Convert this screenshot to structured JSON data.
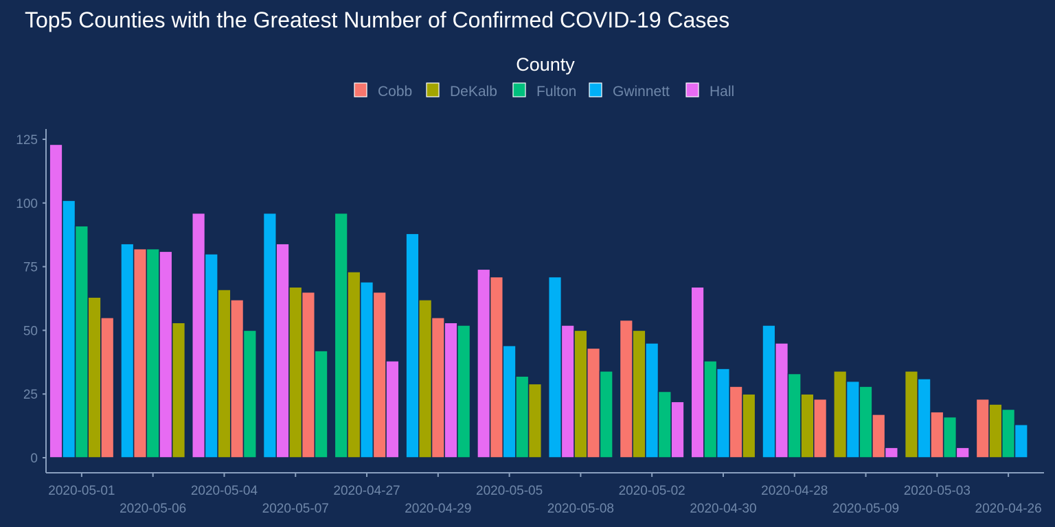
{
  "chart_data": {
    "type": "bar",
    "title": "Top5 Counties with the Greatest Number of Confirmed COVID-19 Cases",
    "legend_title": "County",
    "legend_position": "top",
    "grid": false,
    "ylim": [
      0,
      125
    ],
    "yticks": [
      0,
      25,
      50,
      75,
      100,
      125
    ],
    "colors": {
      "Cobb": "#f8766d",
      "DeKalb": "#a3a500",
      "Fulton": "#00bf7d",
      "Gwinnett": "#00b0f6",
      "Hall": "#e76bf3"
    },
    "background": "#132a52",
    "series_names": [
      "Cobb",
      "DeKalb",
      "Fulton",
      "Gwinnett",
      "Hall"
    ],
    "categories": [
      {
        "date": "2020-05-01",
        "bars": [
          {
            "county": "Hall",
            "value": 123
          },
          {
            "county": "Gwinnett",
            "value": 101
          },
          {
            "county": "Fulton",
            "value": 91
          },
          {
            "county": "DeKalb",
            "value": 63
          },
          {
            "county": "Cobb",
            "value": 55
          }
        ]
      },
      {
        "date": "2020-05-06",
        "bars": [
          {
            "county": "Gwinnett",
            "value": 84
          },
          {
            "county": "Cobb",
            "value": 82
          },
          {
            "county": "Fulton",
            "value": 82
          },
          {
            "county": "Hall",
            "value": 81
          },
          {
            "county": "DeKalb",
            "value": 53
          }
        ]
      },
      {
        "date": "2020-05-04",
        "bars": [
          {
            "county": "Hall",
            "value": 96
          },
          {
            "county": "Gwinnett",
            "value": 80
          },
          {
            "county": "DeKalb",
            "value": 66
          },
          {
            "county": "Cobb",
            "value": 62
          },
          {
            "county": "Fulton",
            "value": 50
          }
        ]
      },
      {
        "date": "2020-05-07",
        "bars": [
          {
            "county": "Gwinnett",
            "value": 96
          },
          {
            "county": "Hall",
            "value": 84
          },
          {
            "county": "DeKalb",
            "value": 67
          },
          {
            "county": "Cobb",
            "value": 65
          },
          {
            "county": "Fulton",
            "value": 42
          }
        ]
      },
      {
        "date": "2020-04-27",
        "bars": [
          {
            "county": "Fulton",
            "value": 96
          },
          {
            "county": "DeKalb",
            "value": 73
          },
          {
            "county": "Gwinnett",
            "value": 69
          },
          {
            "county": "Cobb",
            "value": 65
          },
          {
            "county": "Hall",
            "value": 38
          }
        ]
      },
      {
        "date": "2020-04-29",
        "bars": [
          {
            "county": "Gwinnett",
            "value": 88
          },
          {
            "county": "DeKalb",
            "value": 62
          },
          {
            "county": "Cobb",
            "value": 55
          },
          {
            "county": "Hall",
            "value": 53
          },
          {
            "county": "Fulton",
            "value": 52
          }
        ]
      },
      {
        "date": "2020-05-05",
        "bars": [
          {
            "county": "Hall",
            "value": 74
          },
          {
            "county": "Cobb",
            "value": 71
          },
          {
            "county": "Gwinnett",
            "value": 44
          },
          {
            "county": "Fulton",
            "value": 32
          },
          {
            "county": "DeKalb",
            "value": 29
          }
        ]
      },
      {
        "date": "2020-05-08",
        "bars": [
          {
            "county": "Gwinnett",
            "value": 71
          },
          {
            "county": "Hall",
            "value": 52
          },
          {
            "county": "DeKalb",
            "value": 50
          },
          {
            "county": "Cobb",
            "value": 43
          },
          {
            "county": "Fulton",
            "value": 34
          }
        ]
      },
      {
        "date": "2020-05-02",
        "bars": [
          {
            "county": "Cobb",
            "value": 54
          },
          {
            "county": "DeKalb",
            "value": 50
          },
          {
            "county": "Gwinnett",
            "value": 45
          },
          {
            "county": "Fulton",
            "value": 26
          },
          {
            "county": "Hall",
            "value": 22
          }
        ]
      },
      {
        "date": "2020-04-30",
        "bars": [
          {
            "county": "Hall",
            "value": 67
          },
          {
            "county": "Fulton",
            "value": 38
          },
          {
            "county": "Gwinnett",
            "value": 35
          },
          {
            "county": "Cobb",
            "value": 28
          },
          {
            "county": "DeKalb",
            "value": 25
          }
        ]
      },
      {
        "date": "2020-04-28",
        "bars": [
          {
            "county": "Gwinnett",
            "value": 52
          },
          {
            "county": "Hall",
            "value": 45
          },
          {
            "county": "Fulton",
            "value": 33
          },
          {
            "county": "DeKalb",
            "value": 25
          },
          {
            "county": "Cobb",
            "value": 23
          }
        ]
      },
      {
        "date": "2020-05-09",
        "bars": [
          {
            "county": "DeKalb",
            "value": 34
          },
          {
            "county": "Gwinnett",
            "value": 30
          },
          {
            "county": "Fulton",
            "value": 28
          },
          {
            "county": "Cobb",
            "value": 17
          },
          {
            "county": "Hall",
            "value": 4
          }
        ]
      },
      {
        "date": "2020-05-03",
        "bars": [
          {
            "county": "DeKalb",
            "value": 34
          },
          {
            "county": "Gwinnett",
            "value": 31
          },
          {
            "county": "Cobb",
            "value": 18
          },
          {
            "county": "Fulton",
            "value": 16
          },
          {
            "county": "Hall",
            "value": 4
          }
        ]
      },
      {
        "date": "2020-04-26",
        "bars": [
          {
            "county": "Cobb",
            "value": 23
          },
          {
            "county": "DeKalb",
            "value": 21
          },
          {
            "county": "Fulton",
            "value": 19
          },
          {
            "county": "Gwinnett",
            "value": 13
          }
        ]
      }
    ]
  }
}
